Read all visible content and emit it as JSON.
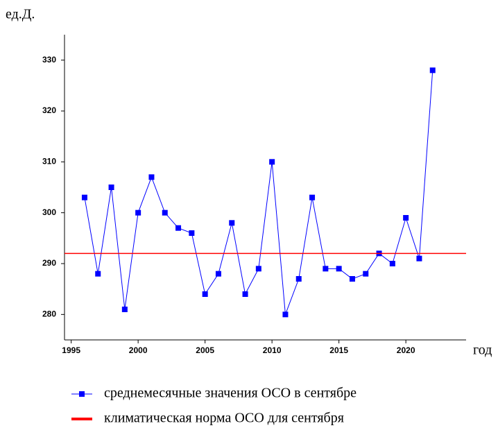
{
  "chart_data": {
    "type": "line",
    "y_unit": "ед.Д.",
    "x_label": "год",
    "x": [
      1996,
      1997,
      1998,
      1999,
      2000,
      2001,
      2002,
      2003,
      2004,
      2005,
      2006,
      2007,
      2008,
      2009,
      2010,
      2011,
      2012,
      2013,
      2014,
      2015,
      2016,
      2017,
      2018,
      2019,
      2020,
      2021,
      2022
    ],
    "series": [
      {
        "name": "среднемесячные значения ОСО в сентябре",
        "color": "#0000ff",
        "values": [
          303,
          288,
          305,
          281,
          300,
          307,
          300,
          297,
          296,
          284,
          288,
          298,
          284,
          289,
          310,
          280,
          287,
          303,
          289,
          289,
          287,
          288,
          292,
          290,
          299,
          291,
          328
        ]
      },
      {
        "name": "климатическая норма ОСО для сентября",
        "color": "#ff0000",
        "level": 292
      }
    ],
    "xlim": [
      1994.5,
      2024.5
    ],
    "xticks": [
      1995,
      2000,
      2005,
      2010,
      2015,
      2020
    ],
    "ylim": [
      275,
      335
    ],
    "yticks": [
      280,
      290,
      300,
      310,
      320,
      330
    ]
  }
}
